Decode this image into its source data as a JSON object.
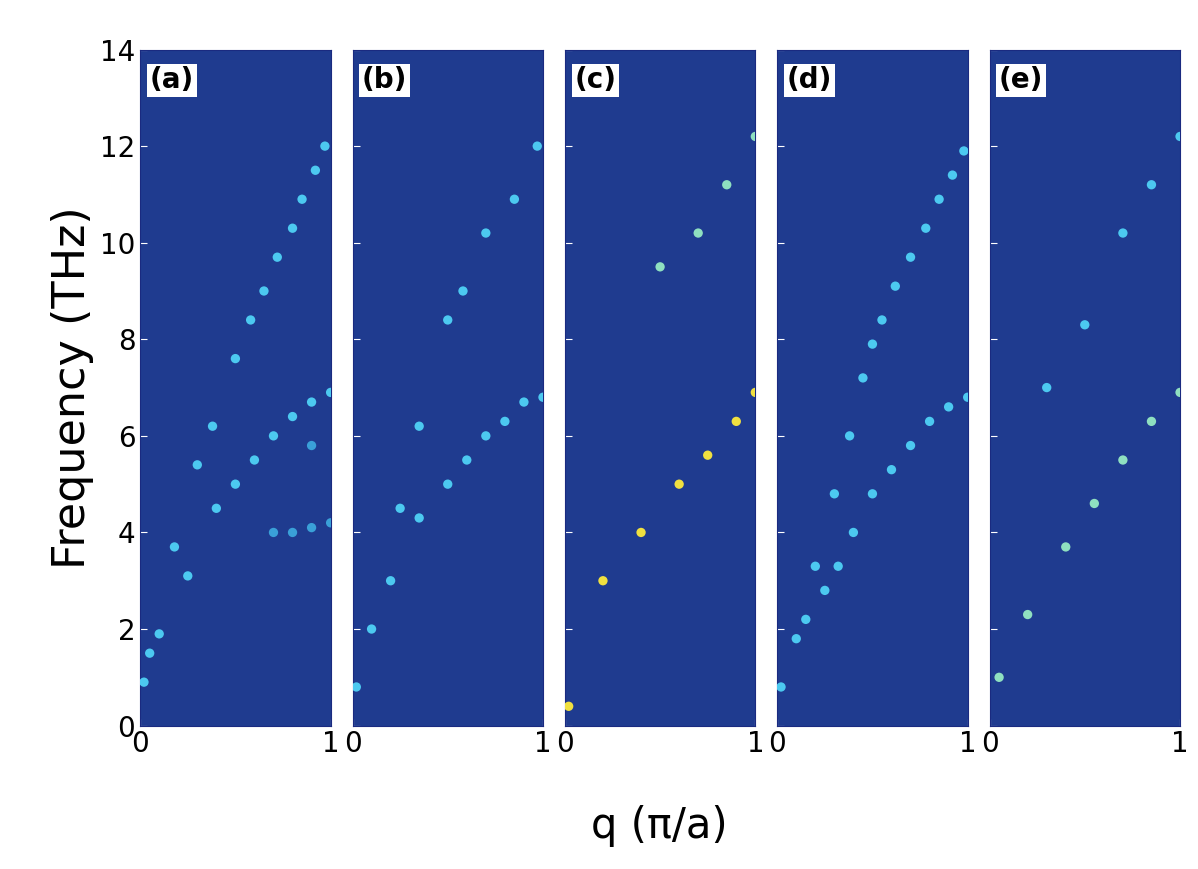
{
  "xlabel": "q (π/a)",
  "chart_data": [
    {
      "type": "scatter",
      "title": "(a)",
      "ylabel": "Frequency (THz)",
      "xlim": [
        0,
        1
      ],
      "ylim": [
        0,
        14
      ],
      "xticks": [
        0,
        1
      ],
      "yticks": [
        0,
        2,
        4,
        6,
        8,
        10,
        12,
        14
      ],
      "series": [
        {
          "color": "#4cc9f0",
          "x": [
            0.05,
            0.18,
            0.3,
            0.38,
            0.5,
            0.58,
            0.65,
            0.72,
            0.8,
            0.85,
            0.92,
            0.97
          ],
          "values": [
            1.5,
            3.7,
            5.4,
            6.2,
            7.6,
            8.4,
            9.0,
            9.7,
            10.3,
            10.9,
            11.5,
            12.0
          ]
        },
        {
          "color": "#4cc9f0",
          "x": [
            0.02,
            0.1,
            0.25,
            0.4,
            0.5,
            0.6,
            0.7,
            0.8,
            0.9,
            1.0
          ],
          "values": [
            0.9,
            1.9,
            3.1,
            4.5,
            5.0,
            5.5,
            6.0,
            6.4,
            6.7,
            6.9
          ]
        },
        {
          "color": "#3aa0d8",
          "x": [
            0.7,
            0.8,
            0.9,
            1.0,
            0.9
          ],
          "values": [
            4.0,
            4.0,
            4.1,
            4.2,
            5.8
          ]
        }
      ]
    },
    {
      "type": "scatter",
      "title": "(b)",
      "tick_labels": "x",
      "xlim": [
        0,
        1
      ],
      "ylim": [
        0,
        14
      ],
      "xticks": [
        0,
        1
      ],
      "yticks": [
        0,
        2,
        4,
        6,
        8,
        10,
        12,
        14
      ],
      "series": [
        {
          "color": "#4cc9f0",
          "x": [
            0.02,
            0.1,
            0.25,
            0.35,
            0.5,
            0.58,
            0.7,
            0.85,
            0.97
          ],
          "values": [
            0.8,
            2.0,
            4.5,
            6.2,
            8.4,
            9.0,
            10.2,
            10.9,
            12.0
          ]
        },
        {
          "color": "#4cc9f0",
          "x": [
            0.2,
            0.35,
            0.5,
            0.6,
            0.7,
            0.8,
            0.9,
            1.0
          ],
          "values": [
            3.0,
            4.3,
            5.0,
            5.5,
            6.0,
            6.3,
            6.7,
            6.8
          ]
        }
      ]
    },
    {
      "type": "scatter",
      "title": "(c)",
      "tick_labels": "x",
      "xlim": [
        0,
        1
      ],
      "ylim": [
        0,
        14
      ],
      "xticks": [
        0,
        1
      ],
      "yticks": [
        0,
        2,
        4,
        6,
        8,
        10,
        12,
        14
      ],
      "series": [
        {
          "color": "#8fe0c0",
          "x": [
            0.5,
            0.7,
            0.85,
            1.0
          ],
          "values": [
            9.5,
            10.2,
            11.2,
            12.2
          ]
        },
        {
          "color": "#f0e040",
          "x": [
            0.02,
            0.2,
            0.4,
            0.6,
            0.75,
            0.9,
            1.0
          ],
          "values": [
            0.4,
            3.0,
            4.0,
            5.0,
            5.6,
            6.3,
            6.9
          ]
        }
      ]
    },
    {
      "type": "scatter",
      "title": "(d)",
      "tick_labels": "x",
      "xlim": [
        0,
        1
      ],
      "ylim": [
        0,
        14
      ],
      "xticks": [
        0,
        1
      ],
      "yticks": [
        0,
        2,
        4,
        6,
        8,
        10,
        12,
        14
      ],
      "series": [
        {
          "color": "#4cc9f0",
          "x": [
            0.02,
            0.1,
            0.2,
            0.3,
            0.38,
            0.45,
            0.5,
            0.55,
            0.62,
            0.7,
            0.78,
            0.85,
            0.92,
            0.98
          ],
          "values": [
            0.8,
            1.8,
            3.3,
            4.8,
            6.0,
            7.2,
            7.9,
            8.4,
            9.1,
            9.7,
            10.3,
            10.9,
            11.4,
            11.9
          ]
        },
        {
          "color": "#4cc9f0",
          "x": [
            0.15,
            0.25,
            0.32,
            0.4,
            0.5,
            0.6,
            0.7,
            0.8,
            0.9,
            1.0
          ],
          "values": [
            2.2,
            2.8,
            3.3,
            4.0,
            4.8,
            5.3,
            5.8,
            6.3,
            6.6,
            6.8
          ]
        }
      ]
    },
    {
      "type": "scatter",
      "title": "(e)",
      "tick_labels": "x",
      "xlim": [
        0,
        1
      ],
      "ylim": [
        0,
        14
      ],
      "xticks": [
        0,
        1
      ],
      "yticks": [
        0,
        2,
        4,
        6,
        8,
        10,
        12,
        14
      ],
      "series": [
        {
          "color": "#4cc9f0",
          "x": [
            0.3,
            0.5,
            0.7,
            0.85,
            1.0
          ],
          "values": [
            7.0,
            8.3,
            10.2,
            11.2,
            12.2
          ]
        },
        {
          "color": "#8fe0c0",
          "x": [
            0.05,
            0.2,
            0.4,
            0.55,
            0.7,
            0.85,
            1.0
          ],
          "values": [
            1.0,
            2.3,
            3.7,
            4.6,
            5.5,
            6.3,
            6.9
          ]
        }
      ]
    }
  ]
}
